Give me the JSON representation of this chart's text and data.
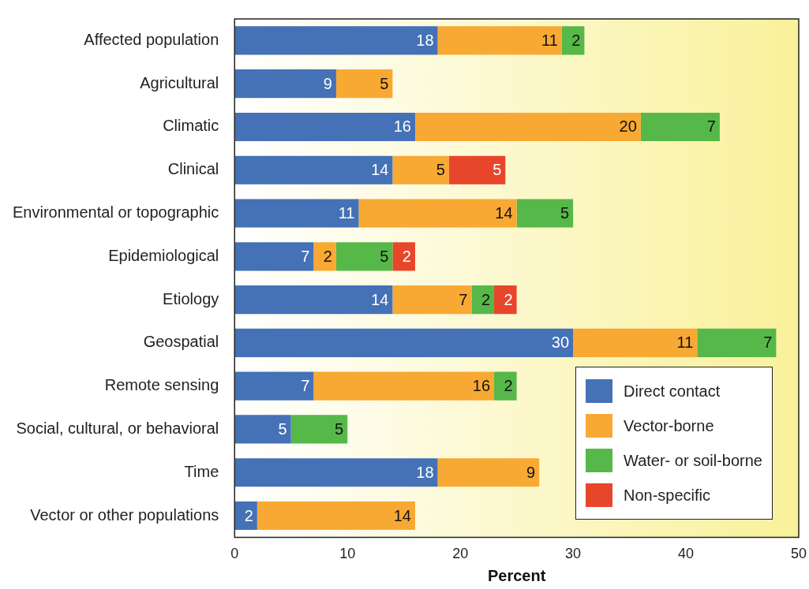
{
  "chart_data": {
    "type": "bar",
    "orientation": "horizontal",
    "stacked": true,
    "xlabel": "Percent",
    "categories": [
      "Affected population",
      "Agricultural",
      "Climatic",
      "Clinical",
      "Environmental or topographic",
      "Epidemiological",
      "Etiology",
      "Geospatial",
      "Remote sensing",
      "Social, cultural, or behavioral",
      "Time",
      "Vector or other populations"
    ],
    "series": [
      {
        "name": "Direct contact",
        "color": "#4571b6",
        "values": [
          18,
          9,
          16,
          14,
          11,
          7,
          14,
          30,
          7,
          5,
          18,
          2
        ]
      },
      {
        "name": "Vector-borne",
        "color": "#f8a933",
        "values": [
          11,
          5,
          20,
          5,
          14,
          2,
          7,
          11,
          16,
          null,
          9,
          14
        ]
      },
      {
        "name": "Water- or soil-borne",
        "color": "#56b849",
        "values": [
          2,
          null,
          7,
          null,
          5,
          5,
          2,
          7,
          2,
          5,
          null,
          null
        ]
      },
      {
        "name": "Non-specific",
        "color": "#e8462b",
        "values": [
          null,
          null,
          null,
          5,
          null,
          2,
          2,
          null,
          null,
          null,
          null,
          null
        ]
      }
    ],
    "xlim": [
      0,
      50
    ],
    "xticks": [
      0,
      10,
      20,
      30,
      40,
      50
    ],
    "data_labels": true,
    "grid": false,
    "legend": "bottom right"
  }
}
